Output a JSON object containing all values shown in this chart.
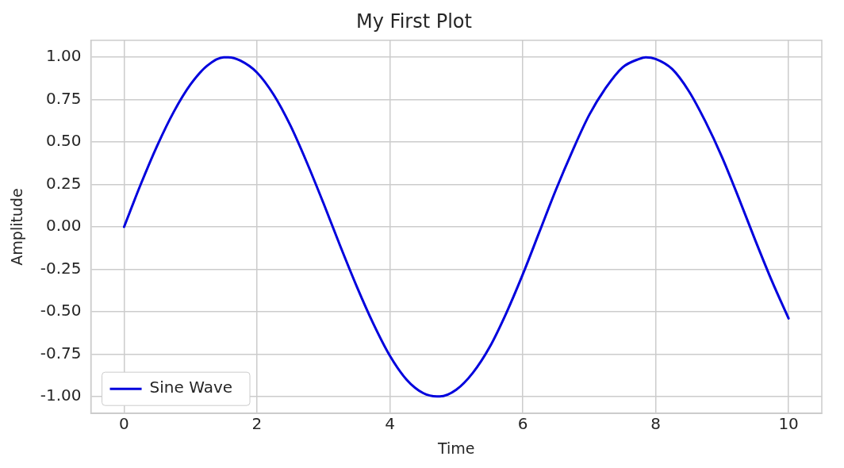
{
  "chart_data": {
    "type": "line",
    "title": "My First Plot",
    "xlabel": "Time",
    "ylabel": "Amplitude",
    "x": [
      0,
      0.25,
      0.5,
      0.75,
      1,
      1.25,
      1.5,
      1.57,
      1.75,
      2,
      2.25,
      2.5,
      2.75,
      3,
      3.25,
      3.5,
      3.75,
      4,
      4.25,
      4.5,
      4.71,
      4.75,
      5,
      5.25,
      5.5,
      5.75,
      6,
      6.25,
      6.5,
      6.75,
      7,
      7.25,
      7.5,
      7.75,
      7.85,
      8,
      8.25,
      8.5,
      8.75,
      9,
      9.25,
      9.5,
      9.75,
      10
    ],
    "series": [
      {
        "name": "Sine Wave",
        "color": "#0000dd",
        "values": [
          0,
          0.25,
          0.48,
          0.68,
          0.84,
          0.95,
          1.0,
          1.0,
          0.98,
          0.91,
          0.78,
          0.6,
          0.38,
          0.14,
          -0.11,
          -0.35,
          -0.57,
          -0.76,
          -0.9,
          -0.98,
          -1.0,
          -1.0,
          -0.96,
          -0.86,
          -0.71,
          -0.51,
          -0.28,
          -0.03,
          0.22,
          0.45,
          0.66,
          0.82,
          0.94,
          0.99,
          1.0,
          0.99,
          0.93,
          0.8,
          0.62,
          0.41,
          0.17,
          -0.08,
          -0.32,
          -0.54
        ]
      }
    ],
    "xlim": [
      -0.5,
      10.5
    ],
    "xticks": [
      0,
      2,
      4,
      6,
      8,
      10
    ],
    "ylim": [
      -1.1,
      1.1
    ],
    "yticks": [
      {
        "value": -1,
        "label": "-1.00"
      },
      {
        "value": -0.75,
        "label": "-0.75"
      },
      {
        "value": -0.5,
        "label": "-0.50"
      },
      {
        "value": -0.25,
        "label": "-0.25"
      },
      {
        "value": 0,
        "label": "0.00"
      },
      {
        "value": 0.25,
        "label": "0.25"
      },
      {
        "value": 0.5,
        "label": "0.50"
      },
      {
        "value": 0.75,
        "label": "0.75"
      },
      {
        "value": 1,
        "label": "1.00"
      }
    ],
    "grid": true,
    "legend": "bottom left",
    "line_style": "solid",
    "marker": "none"
  }
}
